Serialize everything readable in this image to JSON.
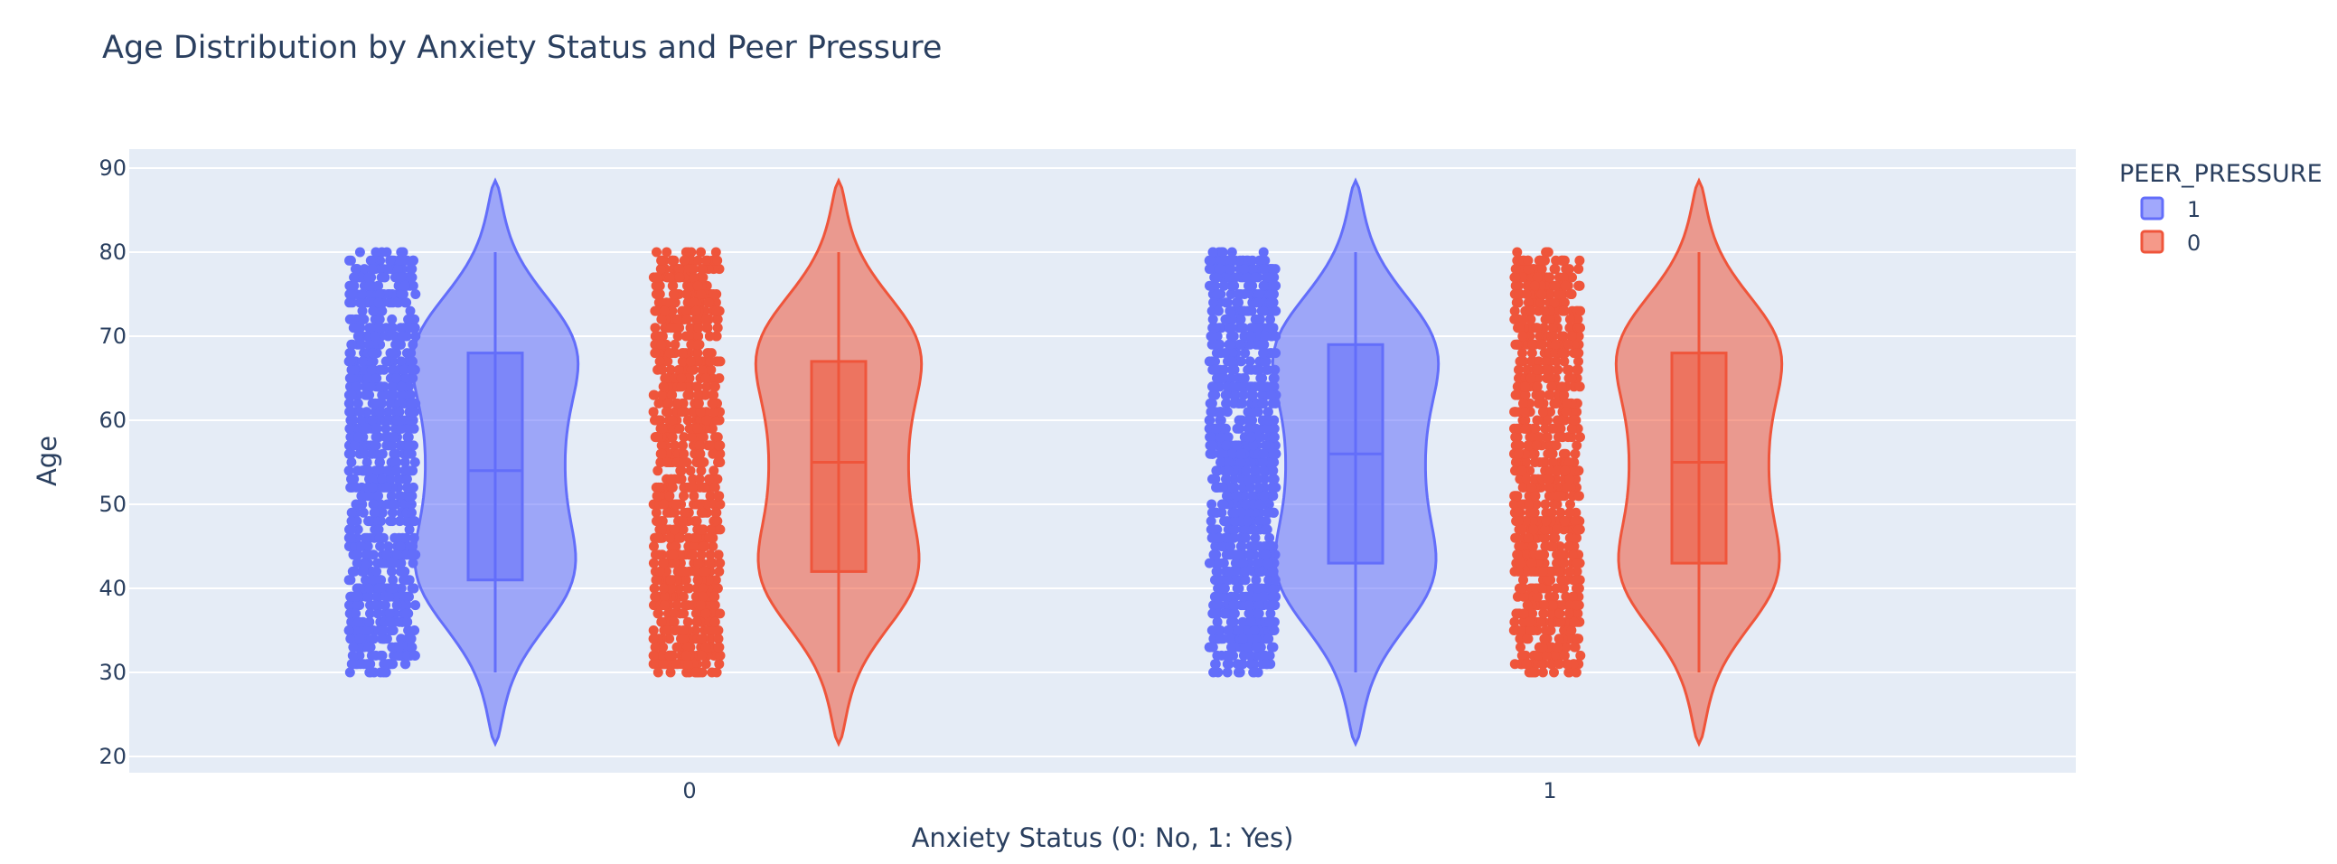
{
  "chart_data": {
    "type": "violin",
    "title": "Age Distribution by Anxiety Status and Peer Pressure",
    "xlabel": "Anxiety Status (0: No, 1: Yes)",
    "ylabel": "Age",
    "categories": [
      "0",
      "1"
    ],
    "ylim": [
      18,
      92
    ],
    "y_ticks": [
      20,
      30,
      40,
      50,
      60,
      70,
      80,
      90
    ],
    "grid": true,
    "legend": {
      "title": "PEER_PRESSURE",
      "position": "top-right"
    },
    "series": [
      {
        "name": "1",
        "color": "#636efa",
        "groups": [
          {
            "category": "0",
            "min": 30,
            "q1": 41,
            "median": 54,
            "q3": 68,
            "max": 80,
            "kde_min": 21.5,
            "kde_max": 88.5
          },
          {
            "category": "1",
            "min": 30,
            "q1": 43,
            "median": 56,
            "q3": 69,
            "max": 80,
            "kde_min": 21.5,
            "kde_max": 88.5
          }
        ]
      },
      {
        "name": "0",
        "color": "#ef553b",
        "groups": [
          {
            "category": "0",
            "min": 30,
            "q1": 42,
            "median": 55,
            "q3": 67,
            "max": 80,
            "kde_min": 21.5,
            "kde_max": 88.5
          },
          {
            "category": "1",
            "min": 30,
            "q1": 43,
            "median": 55,
            "q3": 68,
            "max": 80,
            "kde_min": 21.5,
            "kde_max": 88.5
          }
        ]
      }
    ],
    "points": "all"
  }
}
